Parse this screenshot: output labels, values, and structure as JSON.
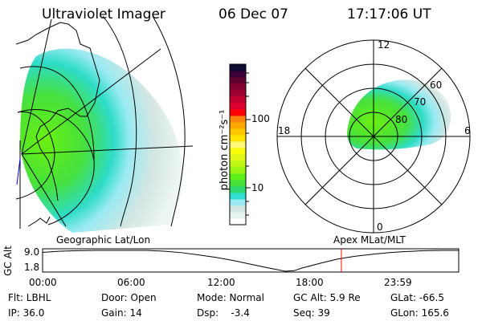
{
  "header": {
    "instrument": "Ultraviolet Imager",
    "date": "06 Dec 07",
    "time": "17:17:06 UT"
  },
  "colorbar": {
    "label": "photon cm⁻²s⁻¹",
    "label_main": "photon cm",
    "label_sup1": "-2",
    "label_s": "s",
    "label_sup2": "-1",
    "ticks": [
      "100",
      "10"
    ],
    "colors": [
      "#ffffff",
      "#e8f4ee",
      "#d4e6e2",
      "#9aeaf2",
      "#2ee0d4",
      "#2ed870",
      "#46e03c",
      "#5af018",
      "#96f410",
      "#bcf814",
      "#def81a",
      "#f6fc0a",
      "#fefa78",
      "#fee400",
      "#fec800",
      "#fea800",
      "#fe8410",
      "#fe0000",
      "#e00030",
      "#c40030",
      "#a00030",
      "#820030",
      "#620030",
      "#3c0038",
      "#0a0a32"
    ]
  },
  "map_labels": {
    "left": "Geographic Lat/Lon",
    "right": "Apex MLat/MLT"
  },
  "polar": {
    "mlt_labels": {
      "top": "12",
      "bottom": "0",
      "left": "18",
      "right": "6"
    },
    "lat_labels": [
      "60",
      "70",
      "80"
    ]
  },
  "timeline": {
    "ylabel": "GC Alt",
    "yticks": [
      "9.0",
      "1.8"
    ],
    "xticks": [
      "00:00",
      "06:00",
      "12:00",
      "18:00",
      "23:59"
    ],
    "current_time_fraction": 0.718,
    "altitude_curve_hours": [
      0,
      1,
      2,
      3,
      4,
      5,
      6,
      7,
      8,
      9,
      10,
      11,
      12,
      13,
      14,
      14.5,
      15,
      16,
      17,
      18,
      19,
      20,
      21,
      22,
      23,
      24
    ],
    "altitude_curve_re": [
      8.3,
      8.7,
      8.9,
      9.0,
      9.0,
      9.0,
      9.0,
      8.7,
      8.2,
      7.4,
      6.5,
      5.4,
      4.1,
      2.8,
      1.6,
      1.8,
      2.8,
      4.4,
      5.9,
      6.9,
      7.6,
      8.2,
      8.6,
      8.9,
      9.0,
      9.0
    ]
  },
  "info": [
    [
      "Flt: LBHL",
      "IP: 36.0"
    ],
    [
      "Door: Open",
      "Gain: 14"
    ],
    [
      "Mode: Normal",
      "Dsp:    -3.4"
    ],
    [
      "GC Alt: 5.9 Re",
      "Seq: 39"
    ],
    [
      "GLat: -66.5",
      "GLon: 165.6"
    ]
  ]
}
